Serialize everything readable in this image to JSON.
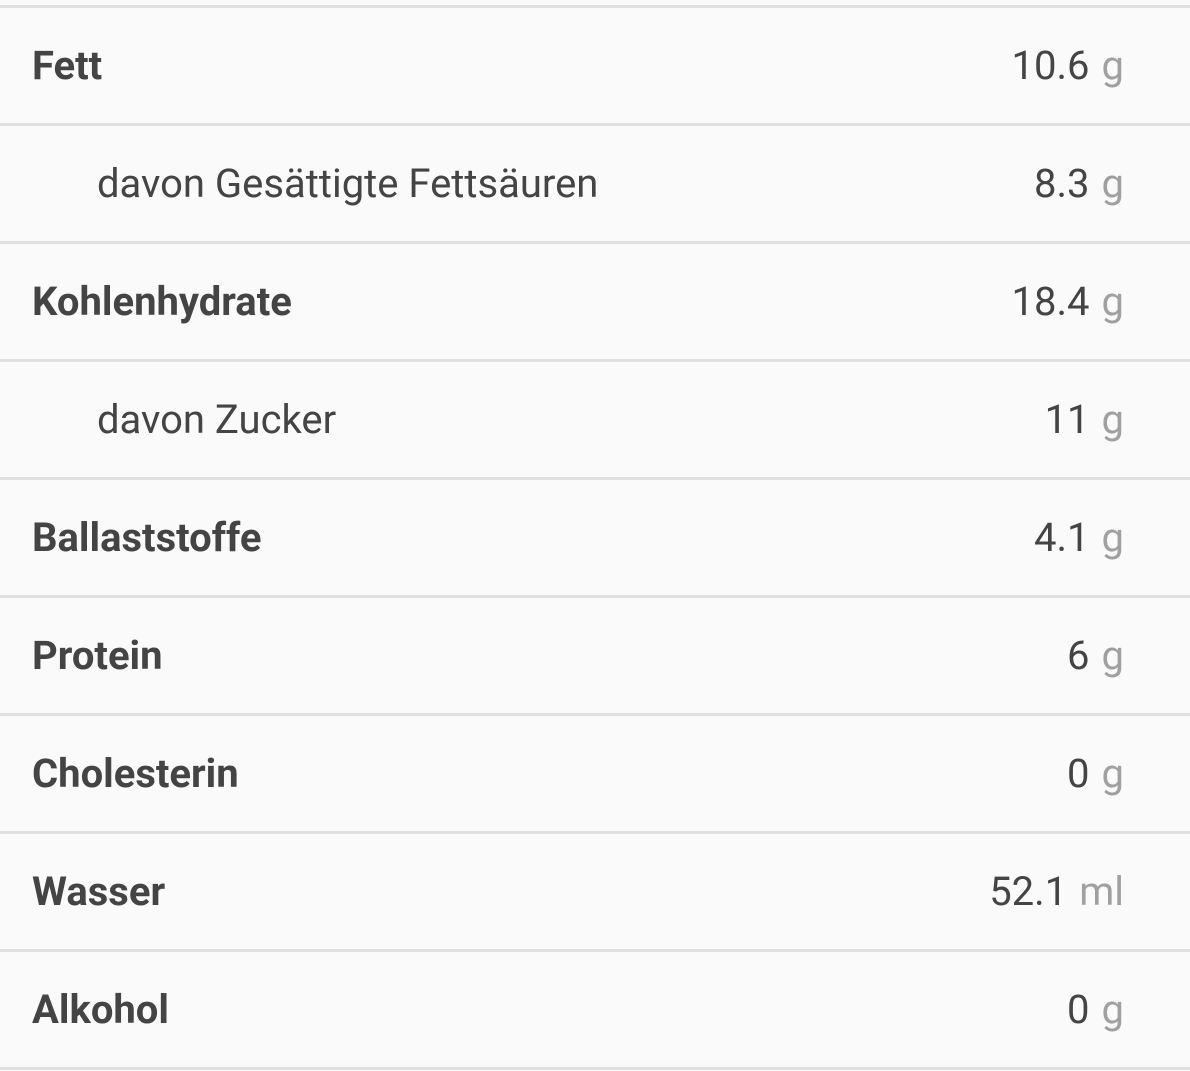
{
  "rows": [
    {
      "label": "Fett",
      "value": 10.6,
      "unit": "g"
    },
    {
      "label": "davon Gesättigte Fettsäuren",
      "value": 8.3,
      "unit": "g"
    },
    {
      "label": "Kohlenhydrate",
      "value": 18.4,
      "unit": "g"
    },
    {
      "label": "davon Zucker",
      "value": 11,
      "unit": "g"
    },
    {
      "label": "Ballaststoffe",
      "value": 4.1,
      "unit": "g"
    },
    {
      "label": "Protein",
      "value": 6,
      "unit": "g"
    },
    {
      "label": "Cholesterin",
      "value": 0,
      "unit": "g"
    },
    {
      "label": "Wasser",
      "value": 52.1,
      "unit": "ml"
    },
    {
      "label": "Alkohol",
      "value": 0,
      "unit": "g"
    }
  ]
}
